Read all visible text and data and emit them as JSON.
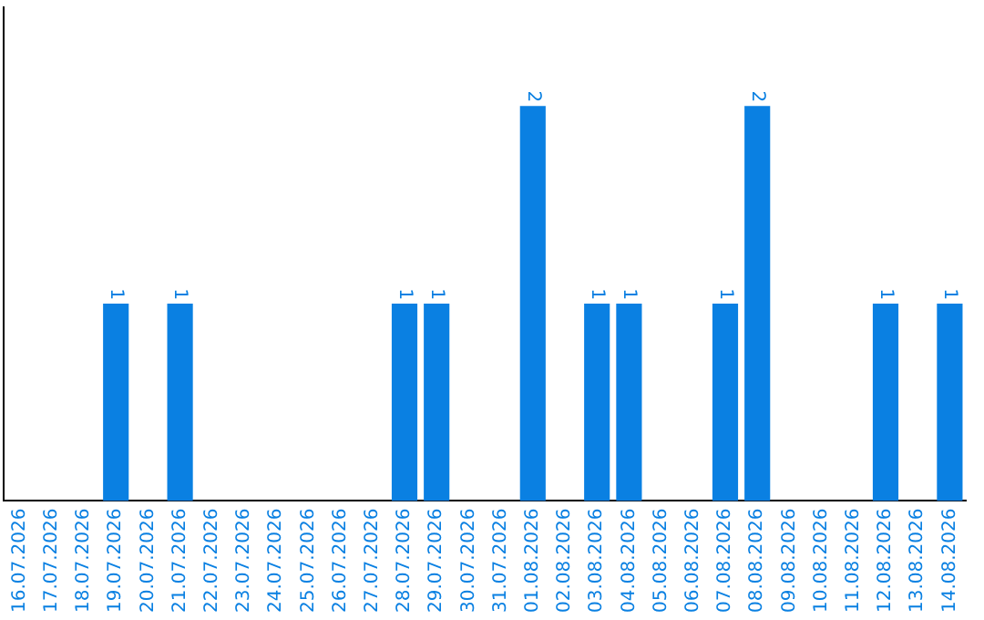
{
  "chart_data": {
    "type": "bar",
    "categories": [
      "16.07.2026",
      "17.07.2026",
      "18.07.2026",
      "19.07.2026",
      "20.07.2026",
      "21.07.2026",
      "22.07.2026",
      "23.07.2026",
      "24.07.2026",
      "25.07.2026",
      "26.07.2026",
      "27.07.2026",
      "28.07.2026",
      "29.07.2026",
      "30.07.2026",
      "31.07.2026",
      "01.08.2026",
      "02.08.2026",
      "03.08.2026",
      "04.08.2026",
      "05.08.2026",
      "06.08.2026",
      "07.08.2026",
      "08.08.2026",
      "09.08.2026",
      "10.08.2026",
      "11.08.2026",
      "12.08.2026",
      "13.08.2026",
      "14.08.2026"
    ],
    "values": [
      0,
      0,
      0,
      1,
      0,
      1,
      0,
      0,
      0,
      0,
      0,
      0,
      1,
      1,
      0,
      0,
      2,
      0,
      1,
      1,
      0,
      0,
      1,
      2,
      0,
      0,
      0,
      1,
      0,
      1
    ],
    "value_labels": [
      null,
      null,
      null,
      "1",
      null,
      "1",
      null,
      null,
      null,
      null,
      null,
      null,
      "1",
      "1",
      null,
      null,
      "2",
      null,
      "1",
      "1",
      null,
      null,
      "1",
      "2",
      null,
      null,
      null,
      "1",
      null,
      "1"
    ],
    "color": "#0a80e2",
    "tick_labels": "x",
    "grid": false,
    "legend": false
  }
}
